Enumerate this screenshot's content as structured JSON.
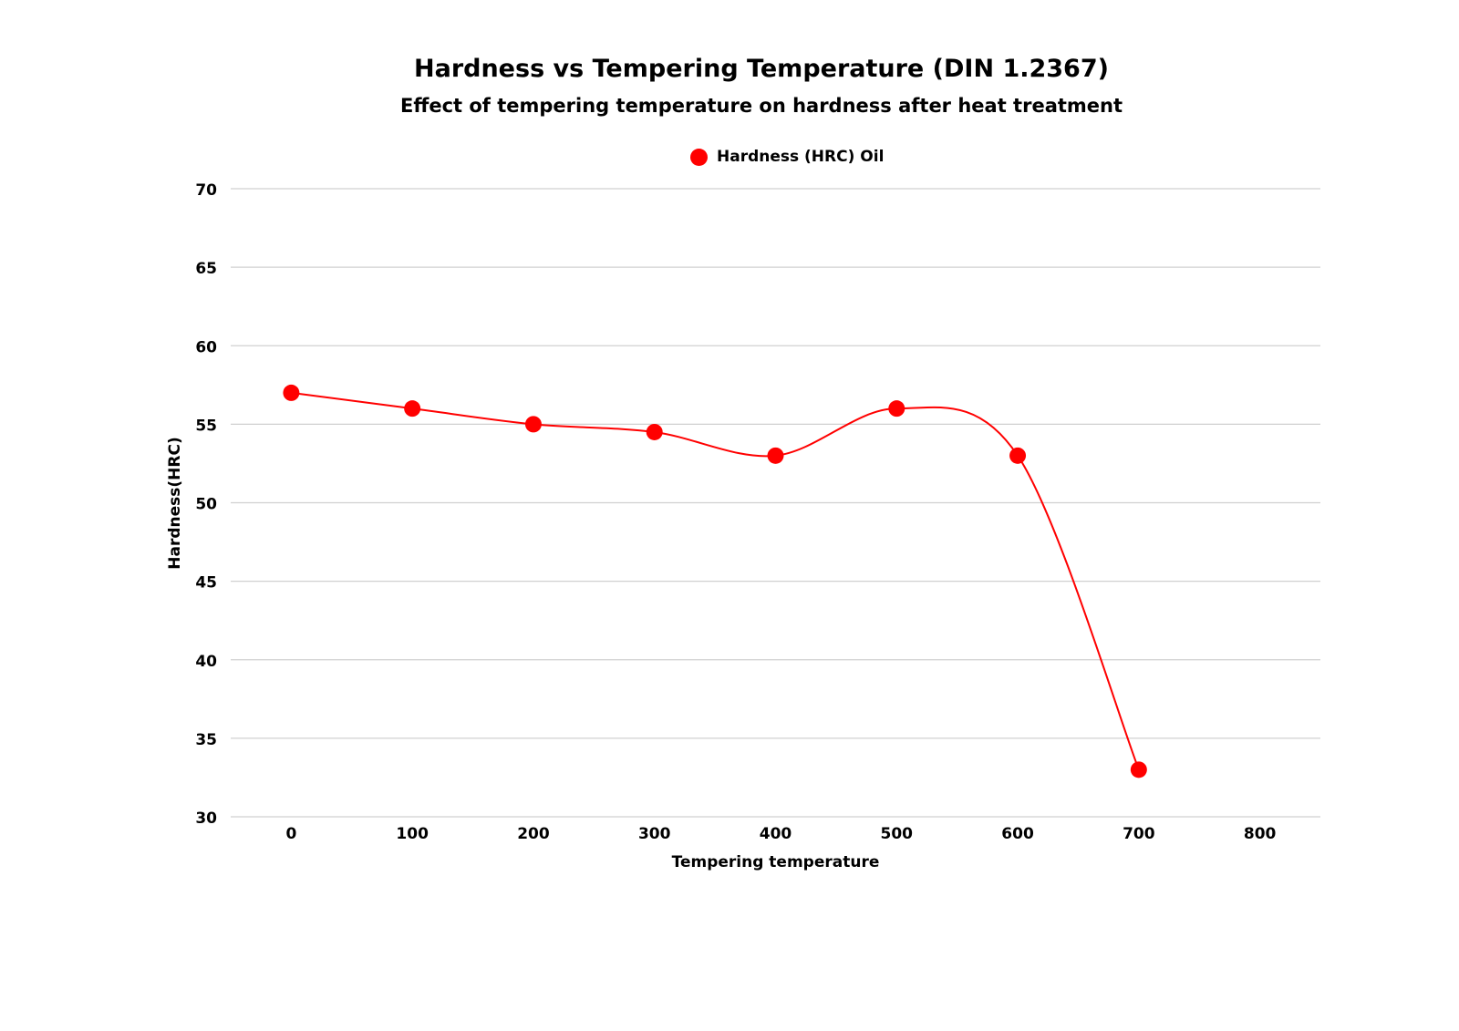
{
  "chart_data": {
    "type": "line",
    "title": "Hardness vs Tempering Temperature (DIN 1.2367)",
    "subtitle": "Effect of tempering temperature on hardness after heat treatment",
    "xlabel": "Tempering temperature",
    "ylabel": "Hardness(HRC)",
    "xlim": [
      -50,
      850
    ],
    "ylim": [
      30,
      70
    ],
    "xticks": [
      0,
      100,
      200,
      300,
      400,
      500,
      600,
      700,
      800
    ],
    "yticks": [
      30,
      35,
      40,
      45,
      50,
      55,
      60,
      65,
      70
    ],
    "grid": "horizontal",
    "legend_position": "top",
    "smooth": true,
    "series": [
      {
        "name": "Hardness (HRC) Oil",
        "color": "#ff0000",
        "x": [
          0,
          100,
          200,
          300,
          400,
          500,
          600,
          700
        ],
        "y": [
          57,
          56,
          55,
          54.5,
          53,
          56,
          53,
          33
        ]
      }
    ]
  }
}
